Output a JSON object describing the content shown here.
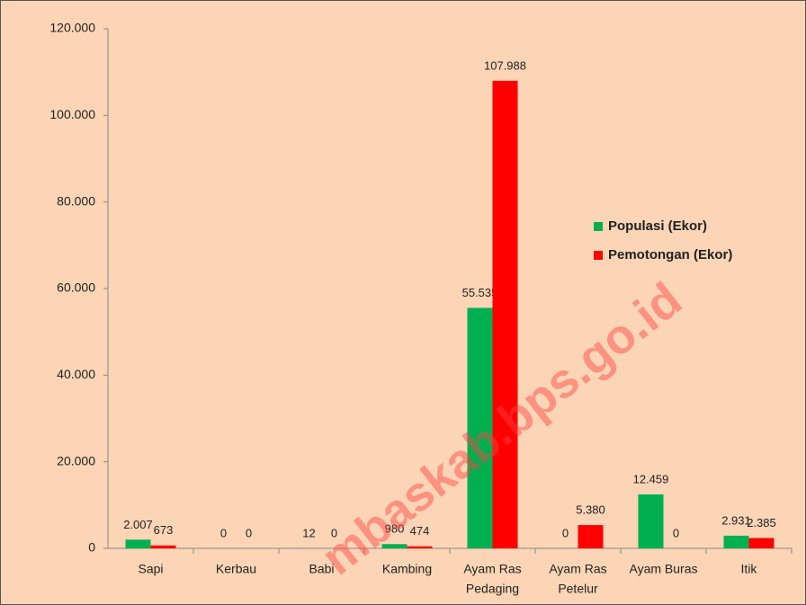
{
  "chart_data": {
    "type": "bar",
    "categories": [
      [
        "Sapi"
      ],
      [
        "Kerbau"
      ],
      [
        "Babi"
      ],
      [
        "Kambing"
      ],
      [
        "Ayam Ras",
        "Pedaging"
      ],
      [
        "Ayam Ras",
        "Petelur"
      ],
      [
        "Ayam Buras"
      ],
      [
        "Itik"
      ]
    ],
    "series": [
      {
        "name": "Populasi (Ekor)",
        "color": "#00b050",
        "values": [
          2007,
          0,
          12,
          980,
          55535,
          0,
          12459,
          2931
        ],
        "value_labels": [
          "2.007",
          "0",
          "12",
          "980",
          "55.535",
          "0",
          "12.459",
          "2.931"
        ]
      },
      {
        "name": "Pemotongan (Ekor)",
        "color": "#ff0000",
        "values": [
          673,
          0,
          0,
          474,
          107988,
          5380,
          0,
          2385
        ],
        "value_labels": [
          "673",
          "0",
          "0",
          "474",
          "107.988",
          "5.380",
          "0",
          "2.385"
        ]
      }
    ],
    "ylim": [
      0,
      120000
    ],
    "yticks": [
      0,
      {
        "value": 20000,
        "label": "20.000"
      },
      {
        "value": 40000,
        "label": "40.000"
      },
      {
        "value": 60000,
        "label": "60.000"
      },
      {
        "value": 80000,
        "label": "80.000"
      },
      {
        "value": 100000,
        "label": "100.000"
      },
      {
        "value": 120000,
        "label": "120.000"
      }
    ],
    "legend": "right",
    "watermark": "mbaskab.bps.go.id"
  }
}
